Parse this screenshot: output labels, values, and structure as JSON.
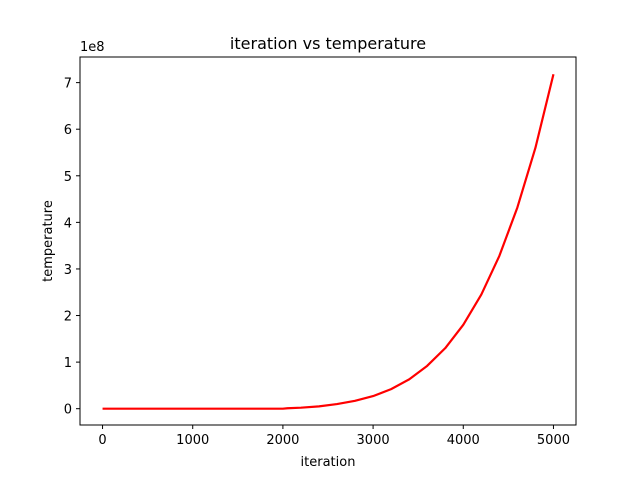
{
  "chart_data": {
    "type": "line",
    "title": "iteration vs temperature",
    "xlabel": "iteration",
    "ylabel": "temperature",
    "offset_text": "1e8",
    "xlim": [
      -250,
      5250
    ],
    "ylim": [
      -35000000,
      755000000
    ],
    "xticks": [
      0,
      1000,
      2000,
      3000,
      4000,
      5000
    ],
    "xtick_labels": [
      "0",
      "1000",
      "2000",
      "3000",
      "4000",
      "5000"
    ],
    "yticks": [
      0,
      100000000,
      200000000,
      300000000,
      400000000,
      500000000,
      600000000,
      700000000
    ],
    "ytick_labels": [
      "0",
      "1",
      "2",
      "3",
      "4",
      "5",
      "6",
      "7"
    ],
    "grid": false,
    "series": [
      {
        "color": "#ff0000",
        "x": [
          0,
          500,
          1000,
          1500,
          2000,
          2050,
          2200,
          2400,
          2600,
          2800,
          3000,
          3200,
          3400,
          3600,
          3800,
          4000,
          4200,
          4400,
          4600,
          4800,
          5000
        ],
        "y": [
          0,
          0,
          0,
          0,
          0,
          1000000,
          2200000,
          5000000,
          10000000,
          17000000,
          27000000,
          42000000,
          63000000,
          92000000,
          130000000,
          180000000,
          245000000,
          328000000,
          432000000,
          560000000,
          718000000
        ]
      }
    ]
  }
}
